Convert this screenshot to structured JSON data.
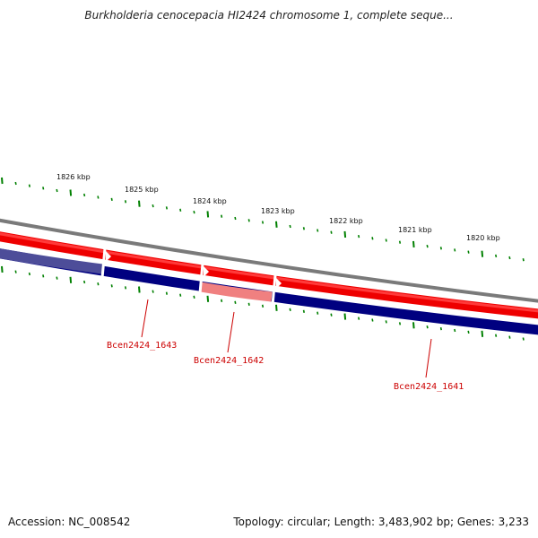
{
  "header": {
    "title": "Burkholderia cenocepacia HI2424 chromosome 1, complete seque..."
  },
  "map": {
    "kbp_labels": [
      "1826 kbp",
      "1825 kbp",
      "1824 kbp",
      "1823 kbp",
      "1822 kbp",
      "1821 kbp",
      "1820 kbp"
    ],
    "genes": [
      {
        "name": "Bcen2424_1643"
      },
      {
        "name": "Bcen2424_1642"
      },
      {
        "name": "Bcen2424_1641"
      }
    ],
    "colors": {
      "backbone": "#808080",
      "forward_strand": "#ff0000",
      "reverse_strand": "#000080",
      "ticks": "#008000",
      "labels": "#cc0000"
    }
  },
  "footer": {
    "accession": "Accession: NC_008542",
    "summary": "Topology: circular; Length: 3,483,902 bp; Genes: 3,233"
  }
}
